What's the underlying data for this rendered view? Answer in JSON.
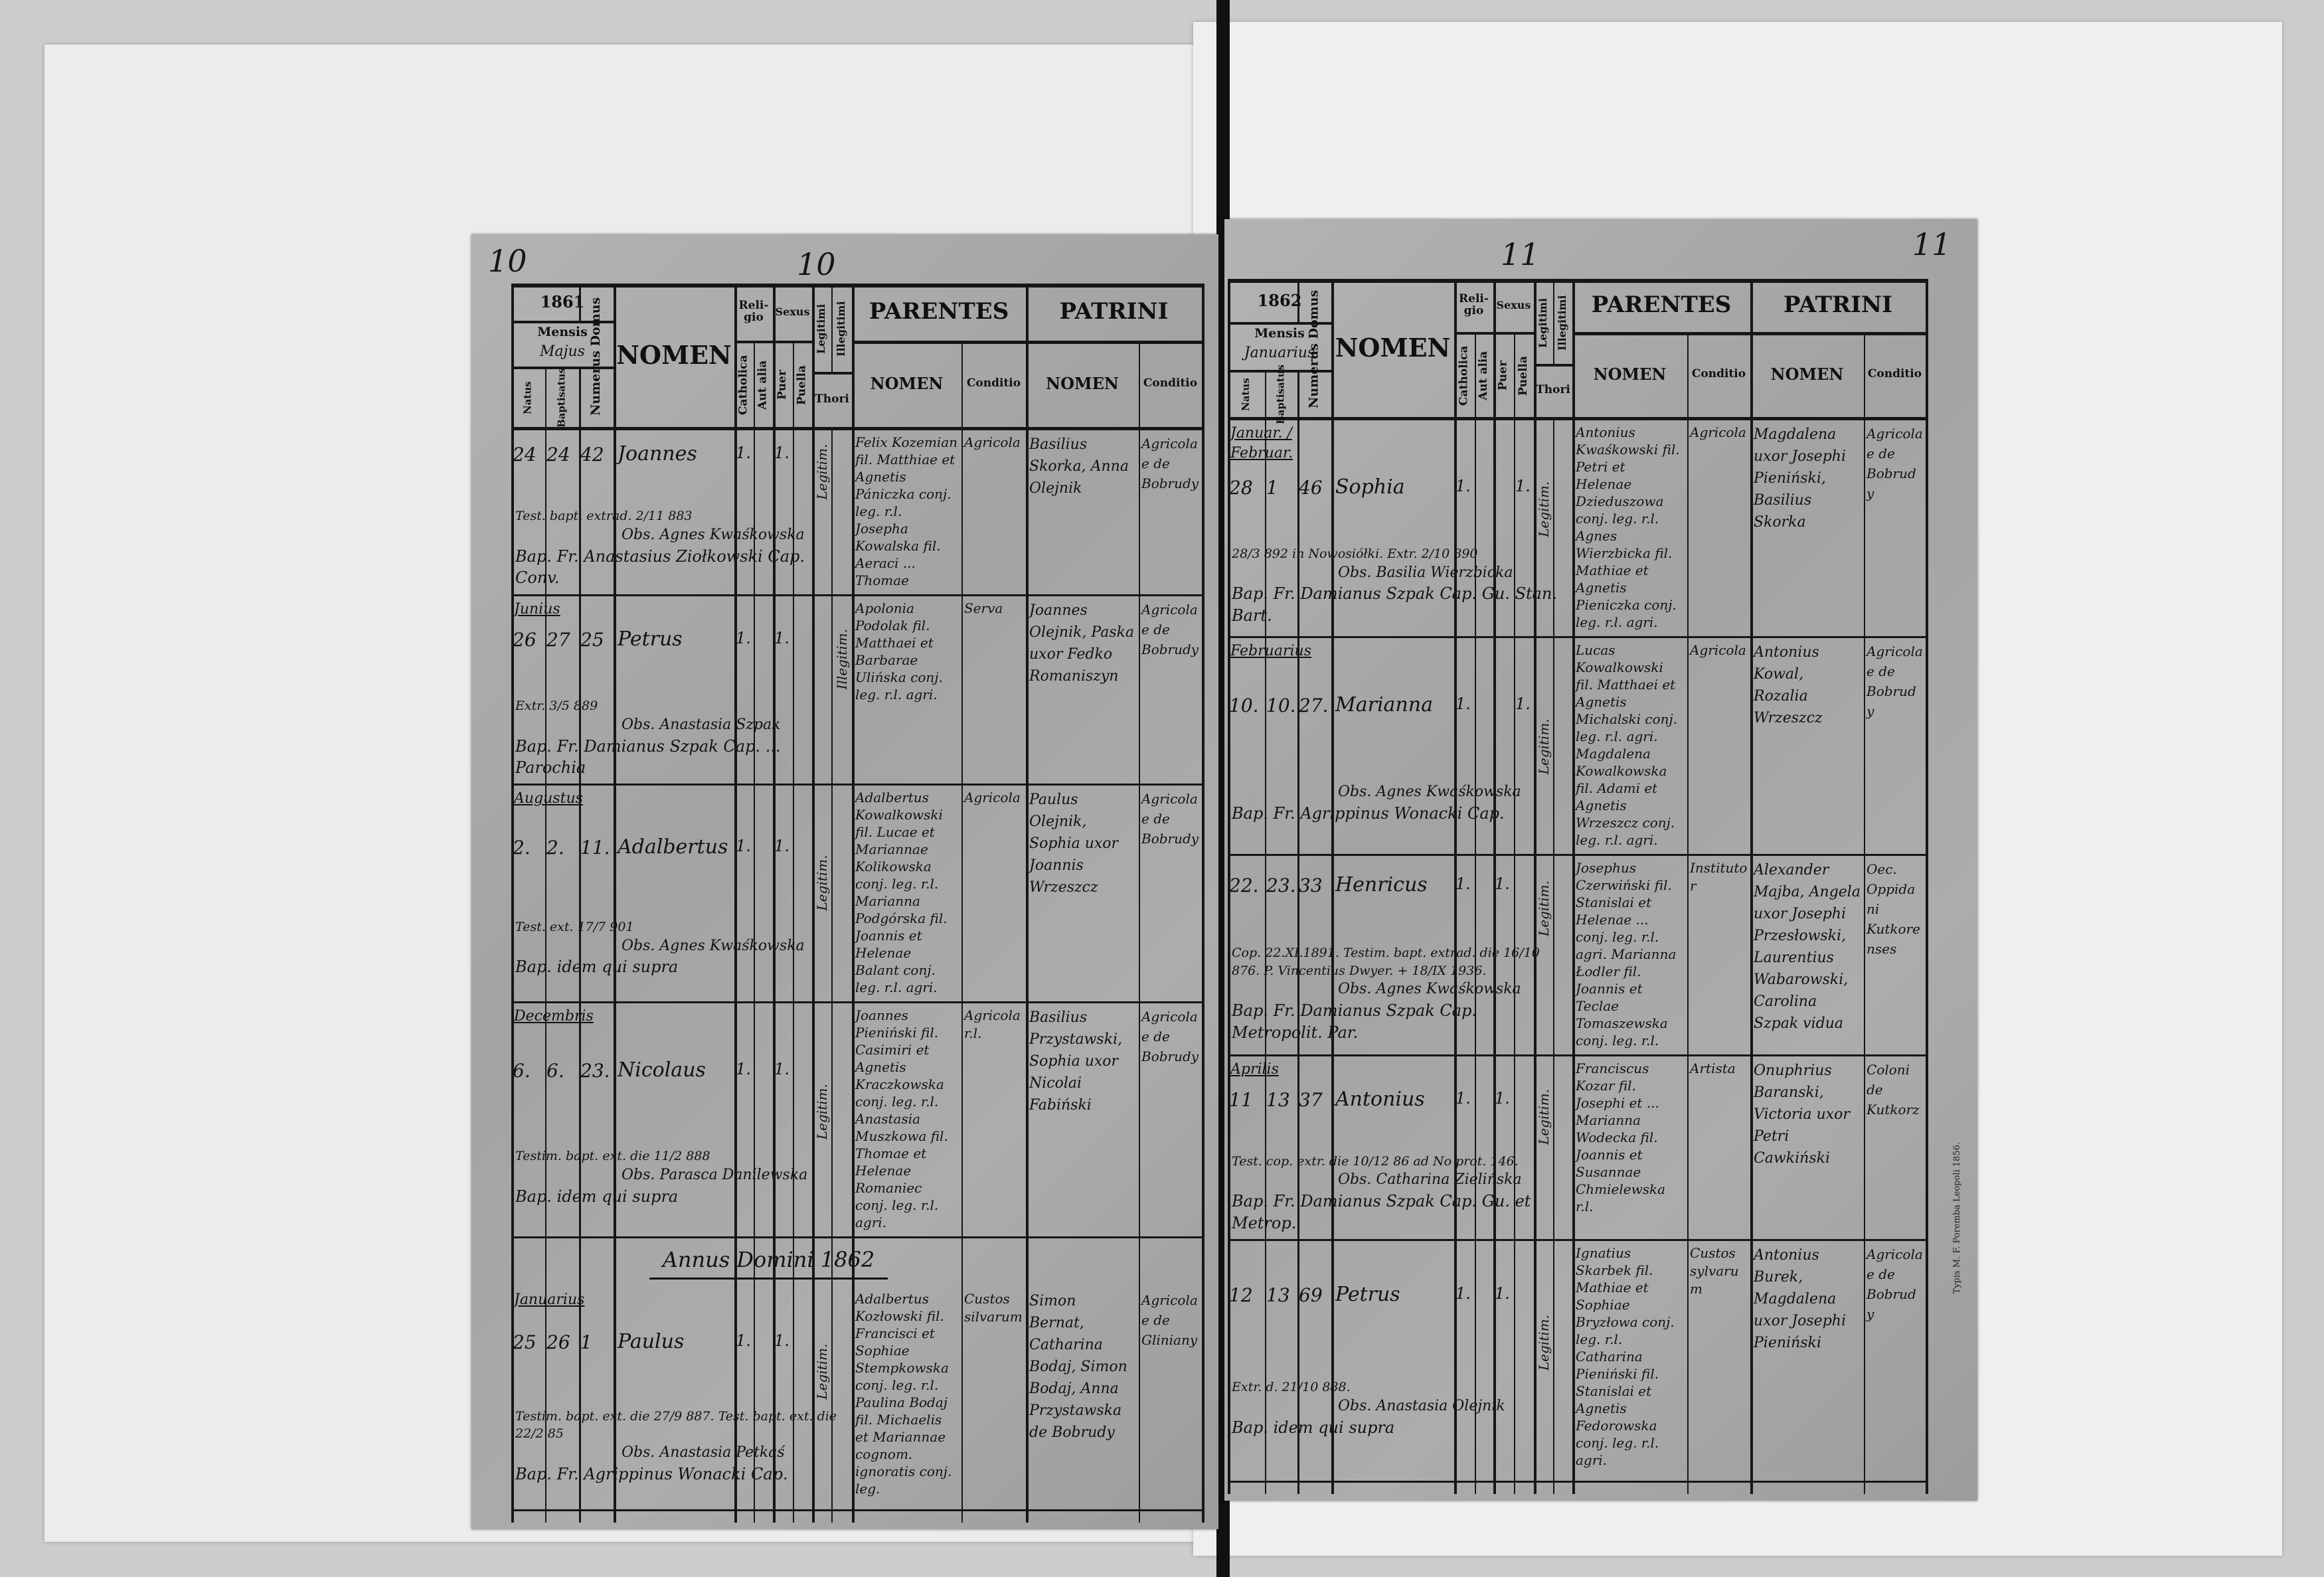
{
  "document": {
    "type": "Liber baptisatorum (microfilm scan)",
    "colors": {
      "paper": "#a9a9a9",
      "ink": "#121212",
      "background": "#cdcdcd"
    }
  },
  "header": {
    "mensis": "Mensis",
    "natus": "Natus",
    "baptisatus": "Baptisatus",
    "numerus_domus": "Numerus Domus",
    "nomen": "NOMEN",
    "religio": "Reli-gio",
    "catholica": "Catholica",
    "aut_alia": "Aut alia",
    "sexus": "Sexus",
    "puer": "Puer",
    "puella": "Puella",
    "legitimi": "Legitimi",
    "illegitimi": "Illegitimi",
    "thori": "Thori",
    "parentes": "PARENTES",
    "patrini": "PATRINI",
    "sub_nomen": "NOMEN",
    "conditio": "Conditio"
  },
  "left_page": {
    "corner_number": "10",
    "page_number": "10",
    "year": "1861",
    "month": "Majus",
    "year_heading": "Annus Domini 1862",
    "rows": [
      {
        "month": "",
        "natus": "24",
        "baptisatus": "24",
        "domus": "42",
        "nomen": "Joannes",
        "notes": "Test. bapt. extrad. 2/11 883",
        "religio": "1.",
        "sexus": "1.",
        "sex": "puer",
        "thori": "Legitim.",
        "obstetrix": "Obs. Agnes Kwaśkowska",
        "parentes": "Felix Kozemian fil. Matthiae et Agnetis Pániczka conj. leg. r.l. Josepha Kowalska fil. Aeraci ... Thomae",
        "parentes_conditio": "Agricola",
        "patrini": "Basilius Skorka, Anna Olejnik",
        "patrini_conditio": "Agricolae de Bobrudy",
        "baptizans": "Bap. Fr. Anastasius Ziołkowski Cap. Conv."
      },
      {
        "month": "Junius",
        "natus": "26",
        "baptisatus": "27",
        "domus": "25",
        "nomen": "Petrus",
        "notes": "Extr. 3/5 889",
        "religio": "1.",
        "sexus": "1.",
        "sex": "puer",
        "thori": "Illegitim.",
        "obstetrix": "Obs. Anastasia Szpak",
        "parentes": "Apolonia Podolak fil. Matthaei et Barbarae Ulińska conj. leg. r.l. agri.",
        "parentes_conditio": "Serva",
        "patrini": "Joannes Olejnik, Paska uxor Fedko Romaniszyn",
        "patrini_conditio": "Agricolae de Bobrudy",
        "baptizans": "Bap. Fr. Damianus Szpak Cap. ... Parochia"
      },
      {
        "month": "Augustus",
        "natus": "2.",
        "baptisatus": "2.",
        "domus": "11.",
        "nomen": "Adalbertus",
        "notes": "Test. ext. 17/7 901",
        "religio": "1.",
        "sexus": "1.",
        "sex": "puer",
        "thori": "Legitim.",
        "obstetrix": "Obs. Agnes Kwaśkowska",
        "parentes": "Adalbertus Kowalkowski fil. Lucae et Mariannae Kolikowska conj. leg. r.l. Marianna Podgórska fil. Joannis et Helenae Balant conj. leg. r.l. agri.",
        "parentes_conditio": "Agricola",
        "patrini": "Paulus Olejnik, Sophia uxor Joannis Wrzeszcz",
        "patrini_conditio": "Agricolae de Bobrudy",
        "baptizans": "Bap. idem qui supra"
      },
      {
        "month": "Decembris",
        "natus": "6.",
        "baptisatus": "6.",
        "domus": "23.",
        "nomen": "Nicolaus",
        "notes": "Testim. bapt. ext. die 11/2 888",
        "religio": "1.",
        "sexus": "1.",
        "sex": "puer",
        "thori": "Legitim.",
        "obstetrix": "Obs. Parasca Danilewska",
        "parentes": "Joannes Pieniński fil. Casimiri et Agnetis Kraczkowska conj. leg. r.l. Anastasia Muszkowa fil. Thomae et Helenae Romaniec conj. leg. r.l. agri.",
        "parentes_conditio": "Agricola r.l.",
        "patrini": "Basilius Przystawski, Sophia uxor Nicolai Fabiński",
        "patrini_conditio": "Agricolae de Bobrudy",
        "baptizans": "Bap. idem qui supra"
      },
      {
        "month": "Januarius",
        "natus": "25",
        "baptisatus": "26",
        "domus": "1",
        "nomen": "Paulus",
        "notes": "Testim. bapt. ext. die 27/9 887. Test. bapt. ext. die 22/2 85",
        "religio": "1.",
        "sexus": "1.",
        "sex": "puer",
        "thori": "Legitim.",
        "obstetrix": "Obs. Anastasia Petkaś",
        "parentes": "Adalbertus Kozłowski fil. Francisci et Sophiae Stempkowska conj. leg. r.l. Paulina Bodaj fil. Michaelis et Mariannae cognom. ignoratis conj. leg.",
        "parentes_conditio": "Custos silvarum",
        "patrini": "Simon Bernat, Catharina Bodaj, Simon Bodaj, Anna Przystawska de Bobrudy",
        "patrini_conditio": "Agricolae de Gliniany",
        "baptizans": "Bap. Fr. Agrippinus Wonacki Cap."
      }
    ]
  },
  "right_page": {
    "corner_number": "11",
    "page_number": "11",
    "year": "1862",
    "month": "Januarius",
    "printer": "Typis M. F. Poremba Leopoli 1856.",
    "rows": [
      {
        "month": "Januar. / Februar.",
        "natus": "28",
        "baptisatus": "1",
        "domus": "46",
        "nomen": "Sophia",
        "notes": "28/3 892 in Nowosiółki. Extr. 2/10 890",
        "religio": "1.",
        "sexus": "1.",
        "sex": "puella",
        "thori": "Legitim.",
        "obstetrix": "Obs. Basilia Wierzbicka",
        "parentes": "Antonius Kwaśkowski fil. Petri et Helenae Dzieduszowa conj. leg. r.l. Agnes Wierzbicka fil. Mathiae et Agnetis Pieniczka conj. leg. r.l. agri.",
        "parentes_conditio": "Agricola",
        "patrini": "Magdalena uxor Josephi Pieniński, Basilius Skorka",
        "patrini_conditio": "Agricolae de Bobrudy",
        "baptizans": "Bap. Fr. Damianus Szpak Cap. Gu. Stan. Bart."
      },
      {
        "month": "Februarius",
        "natus": "10.",
        "baptisatus": "10.",
        "domus": "27.",
        "nomen": "Marianna",
        "notes": "",
        "religio": "1.",
        "sexus": "1.",
        "sex": "puella",
        "thori": "Legitim.",
        "obstetrix": "Obs. Agnes Kwaśkowska",
        "parentes": "Lucas Kowalkowski fil. Matthaei et Agnetis Michalski conj. leg. r.l. agri. Magdalena Kowalkowska fil. Adami et Agnetis Wrzeszcz conj. leg. r.l. agri.",
        "parentes_conditio": "Agricola",
        "patrini": "Antonius Kowal, Rozalia Wrzeszcz",
        "patrini_conditio": "Agricolae de Bobrudy",
        "baptizans": "Bap. Fr. Agrippinus Wonacki Cap."
      },
      {
        "month": "",
        "natus": "22.",
        "baptisatus": "23.",
        "domus": "33",
        "nomen": "Henricus",
        "notes": "Cop. 22.XI.1891. Testim. bapt. extrad. die 16/10 876. P. Vincentius Dwyer. + 18/IX 1936.",
        "religio": "1.",
        "sexus": "1.",
        "sex": "puer",
        "thori": "Legitim.",
        "obstetrix": "Obs. Agnes Kwaśkowska",
        "parentes": "Josephus Czerwiński fil. Stanislai et Helenae ... conj. leg. r.l. agri. Marianna Łodler fil. Joannis et Teclae Tomaszewska conj. leg. r.l.",
        "parentes_conditio": "Institutor",
        "patrini": "Alexander Majba, Angela uxor Josephi Przesłowski, Laurentius Wabarowski, Carolina Szpak vidua",
        "patrini_conditio": "Oec. Oppidani Kutkorenses",
        "baptizans": "Bap. Fr. Damianus Szpak Cap. Metropolit. Par."
      },
      {
        "month": "Aprilis",
        "natus": "11",
        "baptisatus": "13",
        "domus": "37",
        "nomen": "Antonius",
        "notes": "Test. cop. extr. die 10/12 86 ad No prot. 146.",
        "religio": "1.",
        "sexus": "1.",
        "sex": "puer",
        "thori": "Legitim.",
        "obstetrix": "Obs. Catharina Zielińska",
        "parentes": "Franciscus Kozar fil. Josephi et ... Marianna Wodecka fil. Joannis et Susannae Chmielewska r.l.",
        "parentes_conditio": "Artista",
        "patrini": "Onuphrius Baranski, Victoria uxor Petri Cawkiński",
        "patrini_conditio": "Coloni de Kutkorz",
        "baptizans": "Bap. Fr. Damianus Szpak Cap. Gu. et Metrop."
      },
      {
        "month": "",
        "natus": "12",
        "baptisatus": "13",
        "domus": "69",
        "nomen": "Petrus",
        "notes": "Extr. d. 21/10 888.",
        "religio": "1.",
        "sexus": "1.",
        "sex": "puer",
        "thori": "Legitim.",
        "obstetrix": "Obs. Anastasia Olejnik",
        "parentes": "Ignatius Skarbek fil. Mathiae et Sophiae Bryzłowa conj. leg. r.l. Catharina Pieniński fil. Stanislai et Agnetis Fedorowska conj. leg. r.l. agri.",
        "parentes_conditio": "Custos sylvarum",
        "patrini": "Antonius Burek, Magdalena uxor Josephi Pieniński",
        "patrini_conditio": "Agricolae de Bobrudy",
        "baptizans": "Bap. idem qui supra"
      }
    ]
  }
}
